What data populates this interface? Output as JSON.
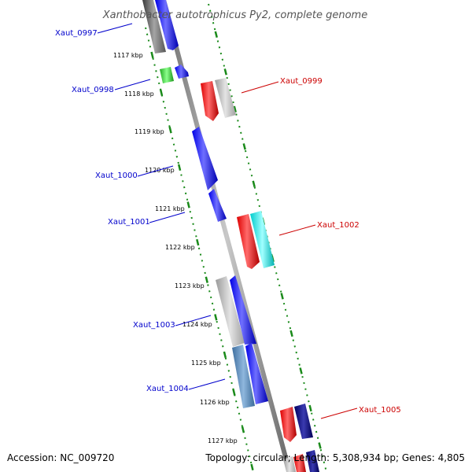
{
  "title": "Xanthobacter autotrophicus Py2, complete genome",
  "footer": {
    "accession": "Accession: NC_009720",
    "summary": "Topology: circular; Length: 5,308,934 bp; Genes: 4,805"
  },
  "kbp_markers": [
    "1117 kbp",
    "1118 kbp",
    "1119 kbp",
    "1120 kbp",
    "1121 kbp",
    "1122 kbp",
    "1123 kbp",
    "1124 kbp",
    "1125 kbp",
    "1126 kbp",
    "1127 kbp"
  ],
  "genes": [
    {
      "label": "Xaut_0997",
      "strand": "forward",
      "color": "#0000cc"
    },
    {
      "label": "Xaut_0998",
      "strand": "forward",
      "color": "#0000cc"
    },
    {
      "label": "Xaut_0999",
      "strand": "reverse",
      "color": "#cc0000"
    },
    {
      "label": "Xaut_1000",
      "strand": "forward",
      "color": "#0000cc"
    },
    {
      "label": "Xaut_1001",
      "strand": "forward",
      "color": "#0000cc"
    },
    {
      "label": "Xaut_1002",
      "strand": "reverse",
      "color": "#cc0000"
    },
    {
      "label": "Xaut_1003",
      "strand": "forward",
      "color": "#0000cc"
    },
    {
      "label": "Xaut_1004",
      "strand": "forward",
      "color": "#0000cc"
    },
    {
      "label": "Xaut_1005",
      "strand": "reverse",
      "color": "#cc0000"
    }
  ],
  "colors": {
    "backbone": "#808080",
    "ruler_dots": "#1a8a1a",
    "forward_label": "#0000cc",
    "reverse_label": "#cc0000"
  }
}
